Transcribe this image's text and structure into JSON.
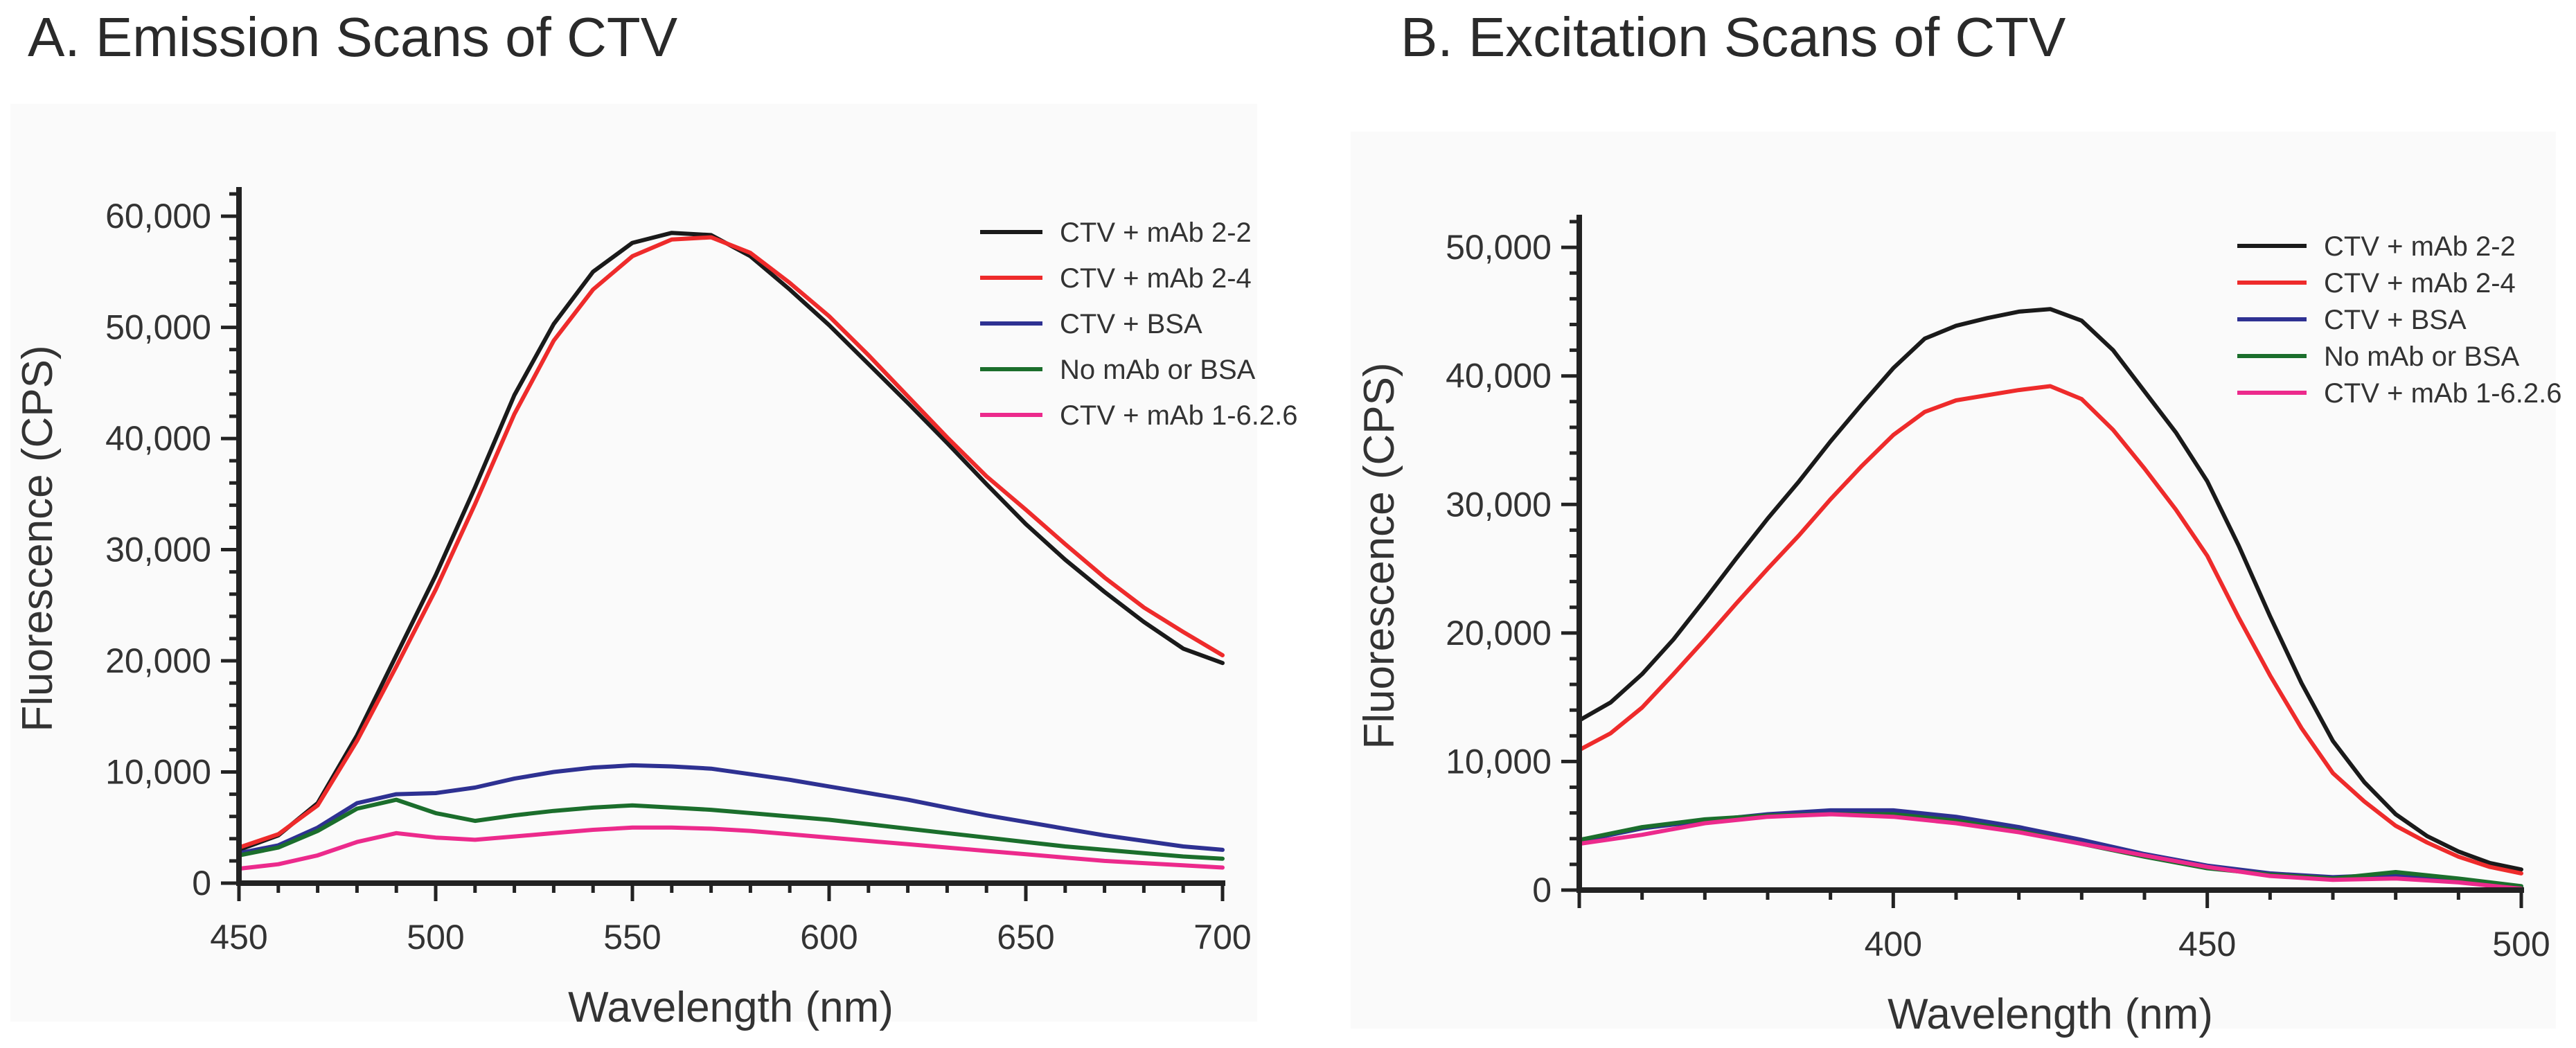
{
  "chart_data": [
    {
      "type": "line",
      "title": "A. Emission Scans of CTV",
      "xlabel": "Wavelength (nm)",
      "ylabel": "Fluorescence (CPS)",
      "xlim": [
        450,
        700
      ],
      "ylim": [
        0,
        62000
      ],
      "xticks": [
        450,
        500,
        550,
        600,
        650,
        700
      ],
      "xtick_labels": [
        "450",
        "500",
        "550",
        "600",
        "650",
        "700"
      ],
      "yticks": [
        0,
        10000,
        20000,
        30000,
        40000,
        50000,
        60000
      ],
      "ytick_labels": [
        "0",
        "10,000",
        "20,000",
        "30,000",
        "40,000",
        "50,000",
        "60,000"
      ],
      "grid": false,
      "legend_position": "top-right",
      "series": [
        {
          "name": "CTV + mAb 2-2",
          "color": "#1a1a1a",
          "x": [
            450,
            460,
            470,
            480,
            490,
            500,
            510,
            520,
            530,
            540,
            550,
            560,
            570,
            580,
            590,
            600,
            610,
            620,
            630,
            640,
            650,
            660,
            670,
            680,
            690,
            700
          ],
          "y": [
            3000,
            4300,
            7200,
            13300,
            20500,
            27700,
            35600,
            43900,
            50300,
            55000,
            57600,
            58500,
            58300,
            56400,
            53400,
            50200,
            46700,
            43200,
            39600,
            35900,
            32300,
            29100,
            26200,
            23500,
            21100,
            19800
          ]
        },
        {
          "name": "CTV + mAb 2-4",
          "color": "#ee2b2b",
          "x": [
            450,
            460,
            470,
            480,
            490,
            500,
            510,
            520,
            530,
            540,
            550,
            560,
            570,
            580,
            590,
            600,
            610,
            620,
            630,
            640,
            650,
            660,
            670,
            680,
            690,
            700
          ],
          "y": [
            3200,
            4400,
            7000,
            12800,
            19500,
            26400,
            34100,
            42200,
            48800,
            53400,
            56400,
            57900,
            58100,
            56700,
            54000,
            51000,
            47500,
            43800,
            40100,
            36600,
            33600,
            30500,
            27500,
            24800,
            22600,
            20500
          ]
        },
        {
          "name": "CTV + BSA",
          "color": "#2e3192",
          "x": [
            450,
            460,
            470,
            480,
            490,
            500,
            510,
            520,
            530,
            540,
            550,
            560,
            570,
            580,
            590,
            600,
            610,
            620,
            630,
            640,
            650,
            660,
            670,
            680,
            690,
            700
          ],
          "y": [
            2700,
            3400,
            5000,
            7200,
            8000,
            8100,
            8600,
            9400,
            10000,
            10400,
            10600,
            10500,
            10300,
            9800,
            9300,
            8700,
            8100,
            7500,
            6800,
            6100,
            5500,
            4900,
            4300,
            3800,
            3300,
            3000
          ]
        },
        {
          "name": "No mAb or BSA",
          "color": "#1b6e2c",
          "x": [
            450,
            460,
            470,
            480,
            490,
            500,
            510,
            520,
            530,
            540,
            550,
            560,
            570,
            580,
            590,
            600,
            610,
            620,
            630,
            640,
            650,
            660,
            670,
            680,
            690,
            700
          ],
          "y": [
            2500,
            3200,
            4700,
            6700,
            7500,
            6300,
            5600,
            6100,
            6500,
            6800,
            7000,
            6800,
            6600,
            6300,
            6000,
            5700,
            5300,
            4900,
            4500,
            4100,
            3700,
            3300,
            3000,
            2700,
            2400,
            2200
          ]
        },
        {
          "name": "CTV + mAb 1-6.2.6",
          "color": "#ec2a8c",
          "x": [
            450,
            460,
            470,
            480,
            490,
            500,
            510,
            520,
            530,
            540,
            550,
            560,
            570,
            580,
            590,
            600,
            610,
            620,
            630,
            640,
            650,
            660,
            670,
            680,
            690,
            700
          ],
          "y": [
            1300,
            1700,
            2500,
            3700,
            4500,
            4100,
            3900,
            4200,
            4500,
            4800,
            5000,
            5000,
            4900,
            4700,
            4400,
            4100,
            3800,
            3500,
            3200,
            2900,
            2600,
            2300,
            2000,
            1800,
            1600,
            1400
          ]
        }
      ]
    },
    {
      "type": "line",
      "title": "B. Excitation Scans of CTV",
      "xlabel": "Wavelength (nm)",
      "ylabel": "Fluorescence (CPS)",
      "xlim": [
        350,
        500
      ],
      "ylim": [
        0,
        52000
      ],
      "xticks": [
        400,
        450,
        500
      ],
      "xtick_labels": [
        "400",
        "450",
        "500"
      ],
      "yticks": [
        0,
        10000,
        20000,
        30000,
        40000,
        50000
      ],
      "ytick_labels": [
        "0",
        "10,000",
        "20,000",
        "30,000",
        "40,000",
        "50,000"
      ],
      "grid": false,
      "legend_position": "top-right",
      "series": [
        {
          "name": "CTV + mAb 2-2",
          "color": "#1a1a1a",
          "x": [
            350,
            355,
            360,
            365,
            370,
            375,
            380,
            385,
            390,
            395,
            400,
            405,
            410,
            415,
            420,
            425,
            430,
            435,
            440,
            445,
            450,
            455,
            460,
            465,
            470,
            475,
            480,
            485,
            490,
            495,
            500
          ],
          "y": [
            13200,
            14600,
            16800,
            19500,
            22600,
            25800,
            28900,
            31800,
            34900,
            37800,
            40600,
            42900,
            43900,
            44500,
            45000,
            45200,
            44300,
            42000,
            38800,
            35600,
            31800,
            26800,
            21300,
            16100,
            11600,
            8400,
            5900,
            4200,
            3000,
            2100,
            1600
          ]
        },
        {
          "name": "CTV + mAb 2-4",
          "color": "#ee2b2b",
          "x": [
            350,
            355,
            360,
            365,
            370,
            375,
            380,
            385,
            390,
            395,
            400,
            405,
            410,
            415,
            420,
            425,
            430,
            435,
            440,
            445,
            450,
            455,
            460,
            465,
            470,
            475,
            480,
            485,
            490,
            495,
            500
          ],
          "y": [
            10900,
            12200,
            14200,
            16800,
            19500,
            22300,
            25000,
            27600,
            30400,
            33000,
            35400,
            37200,
            38100,
            38500,
            38900,
            39200,
            38200,
            35800,
            32800,
            29600,
            26000,
            21200,
            16700,
            12600,
            9100,
            6900,
            5000,
            3700,
            2600,
            1800,
            1300
          ]
        },
        {
          "name": "CTV + BSA",
          "color": "#2e3192",
          "x": [
            350,
            360,
            370,
            380,
            390,
            400,
            410,
            420,
            430,
            440,
            450,
            460,
            470,
            480,
            490,
            500
          ],
          "y": [
            3800,
            4800,
            5400,
            5900,
            6200,
            6200,
            5700,
            4900,
            3900,
            2800,
            1900,
            1300,
            1000,
            1200,
            800,
            200
          ]
        },
        {
          "name": "No mAb or BSA",
          "color": "#1b6e2c",
          "x": [
            350,
            360,
            370,
            380,
            390,
            400,
            410,
            420,
            430,
            440,
            450,
            460,
            470,
            480,
            490,
            500
          ],
          "y": [
            3900,
            4900,
            5500,
            5800,
            5900,
            5900,
            5400,
            4600,
            3600,
            2600,
            1700,
            1200,
            900,
            1400,
            900,
            300
          ]
        },
        {
          "name": "CTV + mAb 1-6.2.6",
          "color": "#ec2a8c",
          "x": [
            350,
            360,
            370,
            380,
            390,
            400,
            410,
            420,
            430,
            440,
            450,
            460,
            470,
            480,
            490,
            500
          ],
          "y": [
            3600,
            4300,
            5200,
            5700,
            5900,
            5700,
            5200,
            4500,
            3600,
            2700,
            1800,
            1100,
            800,
            900,
            600,
            100
          ]
        }
      ]
    }
  ]
}
